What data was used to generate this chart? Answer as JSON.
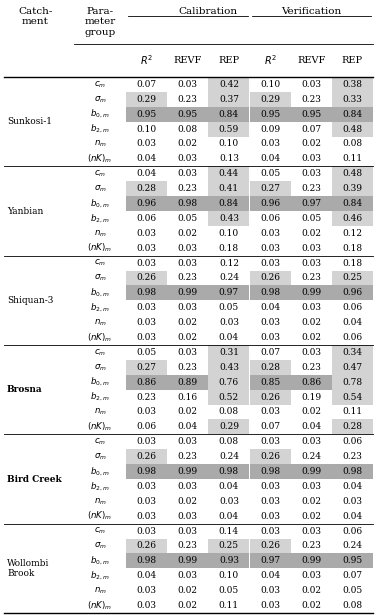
{
  "catchments": [
    "Sunkosi-1",
    "Yanbian",
    "Shiquan-3",
    "Brosna",
    "Bird Creek",
    "Wollombi\nBrook"
  ],
  "catchment_bold": [
    false,
    false,
    false,
    true,
    true,
    false
  ],
  "param_labels": [
    "$c_m$",
    "$\\sigma_m$",
    "$b_{0,m}$",
    "$b_{2,m}$",
    "$n_m$",
    "$(nK)_m$"
  ],
  "data": [
    [
      [
        0.07,
        0.03,
        0.42,
        0.1,
        0.03,
        0.38
      ],
      [
        0.29,
        0.23,
        0.37,
        0.29,
        0.23,
        0.33
      ],
      [
        0.95,
        0.95,
        0.84,
        0.95,
        0.95,
        0.84
      ],
      [
        0.1,
        0.08,
        0.59,
        0.09,
        0.07,
        0.48
      ],
      [
        0.03,
        0.02,
        0.1,
        0.03,
        0.02,
        0.08
      ],
      [
        0.04,
        0.03,
        0.13,
        0.04,
        0.03,
        0.11
      ]
    ],
    [
      [
        0.04,
        0.03,
        0.44,
        0.05,
        0.03,
        0.48
      ],
      [
        0.28,
        0.23,
        0.41,
        0.27,
        0.23,
        0.39
      ],
      [
        0.96,
        0.98,
        0.84,
        0.96,
        0.97,
        0.84
      ],
      [
        0.06,
        0.05,
        0.43,
        0.06,
        0.05,
        0.46
      ],
      [
        0.03,
        0.02,
        0.1,
        0.03,
        0.02,
        0.12
      ],
      [
        0.03,
        0.03,
        0.18,
        0.03,
        0.03,
        0.18
      ]
    ],
    [
      [
        0.03,
        0.03,
        0.12,
        0.03,
        0.03,
        0.18
      ],
      [
        0.26,
        0.23,
        0.24,
        0.26,
        0.23,
        0.25
      ],
      [
        0.98,
        0.99,
        0.97,
        0.98,
        0.99,
        0.96
      ],
      [
        0.03,
        0.03,
        0.05,
        0.04,
        0.03,
        0.06
      ],
      [
        0.03,
        0.02,
        0.03,
        0.03,
        0.02,
        0.04
      ],
      [
        0.03,
        0.02,
        0.04,
        0.03,
        0.02,
        0.06
      ]
    ],
    [
      [
        0.05,
        0.03,
        0.31,
        0.07,
        0.03,
        0.34
      ],
      [
        0.27,
        0.23,
        0.43,
        0.28,
        0.23,
        0.47
      ],
      [
        0.86,
        0.89,
        0.76,
        0.85,
        0.86,
        0.78
      ],
      [
        0.23,
        0.16,
        0.52,
        0.26,
        0.19,
        0.54
      ],
      [
        0.03,
        0.02,
        0.08,
        0.03,
        0.02,
        0.11
      ],
      [
        0.06,
        0.04,
        0.29,
        0.07,
        0.04,
        0.28
      ]
    ],
    [
      [
        0.03,
        0.03,
        0.08,
        0.03,
        0.03,
        0.06
      ],
      [
        0.26,
        0.23,
        0.24,
        0.26,
        0.24,
        0.23
      ],
      [
        0.98,
        0.99,
        0.98,
        0.98,
        0.99,
        0.98
      ],
      [
        0.03,
        0.03,
        0.04,
        0.03,
        0.03,
        0.04
      ],
      [
        0.03,
        0.02,
        0.03,
        0.03,
        0.02,
        0.03
      ],
      [
        0.03,
        0.03,
        0.04,
        0.03,
        0.02,
        0.04
      ]
    ],
    [
      [
        0.03,
        0.03,
        0.14,
        0.03,
        0.03,
        0.06
      ],
      [
        0.26,
        0.23,
        0.25,
        0.26,
        0.23,
        0.24
      ],
      [
        0.98,
        0.99,
        0.93,
        0.97,
        0.99,
        0.95
      ],
      [
        0.04,
        0.03,
        0.1,
        0.04,
        0.03,
        0.07
      ],
      [
        0.03,
        0.02,
        0.05,
        0.03,
        0.02,
        0.05
      ],
      [
        0.03,
        0.02,
        0.11,
        0.03,
        0.02,
        0.08
      ]
    ]
  ],
  "thresh_dark": 0.8,
  "thresh_light": 0.25,
  "color_dark": "#aaaaaa",
  "color_light": "#d3d3d3",
  "fs_data": 6.5,
  "fs_header": 7.5,
  "fs_colhdr": 7.0
}
